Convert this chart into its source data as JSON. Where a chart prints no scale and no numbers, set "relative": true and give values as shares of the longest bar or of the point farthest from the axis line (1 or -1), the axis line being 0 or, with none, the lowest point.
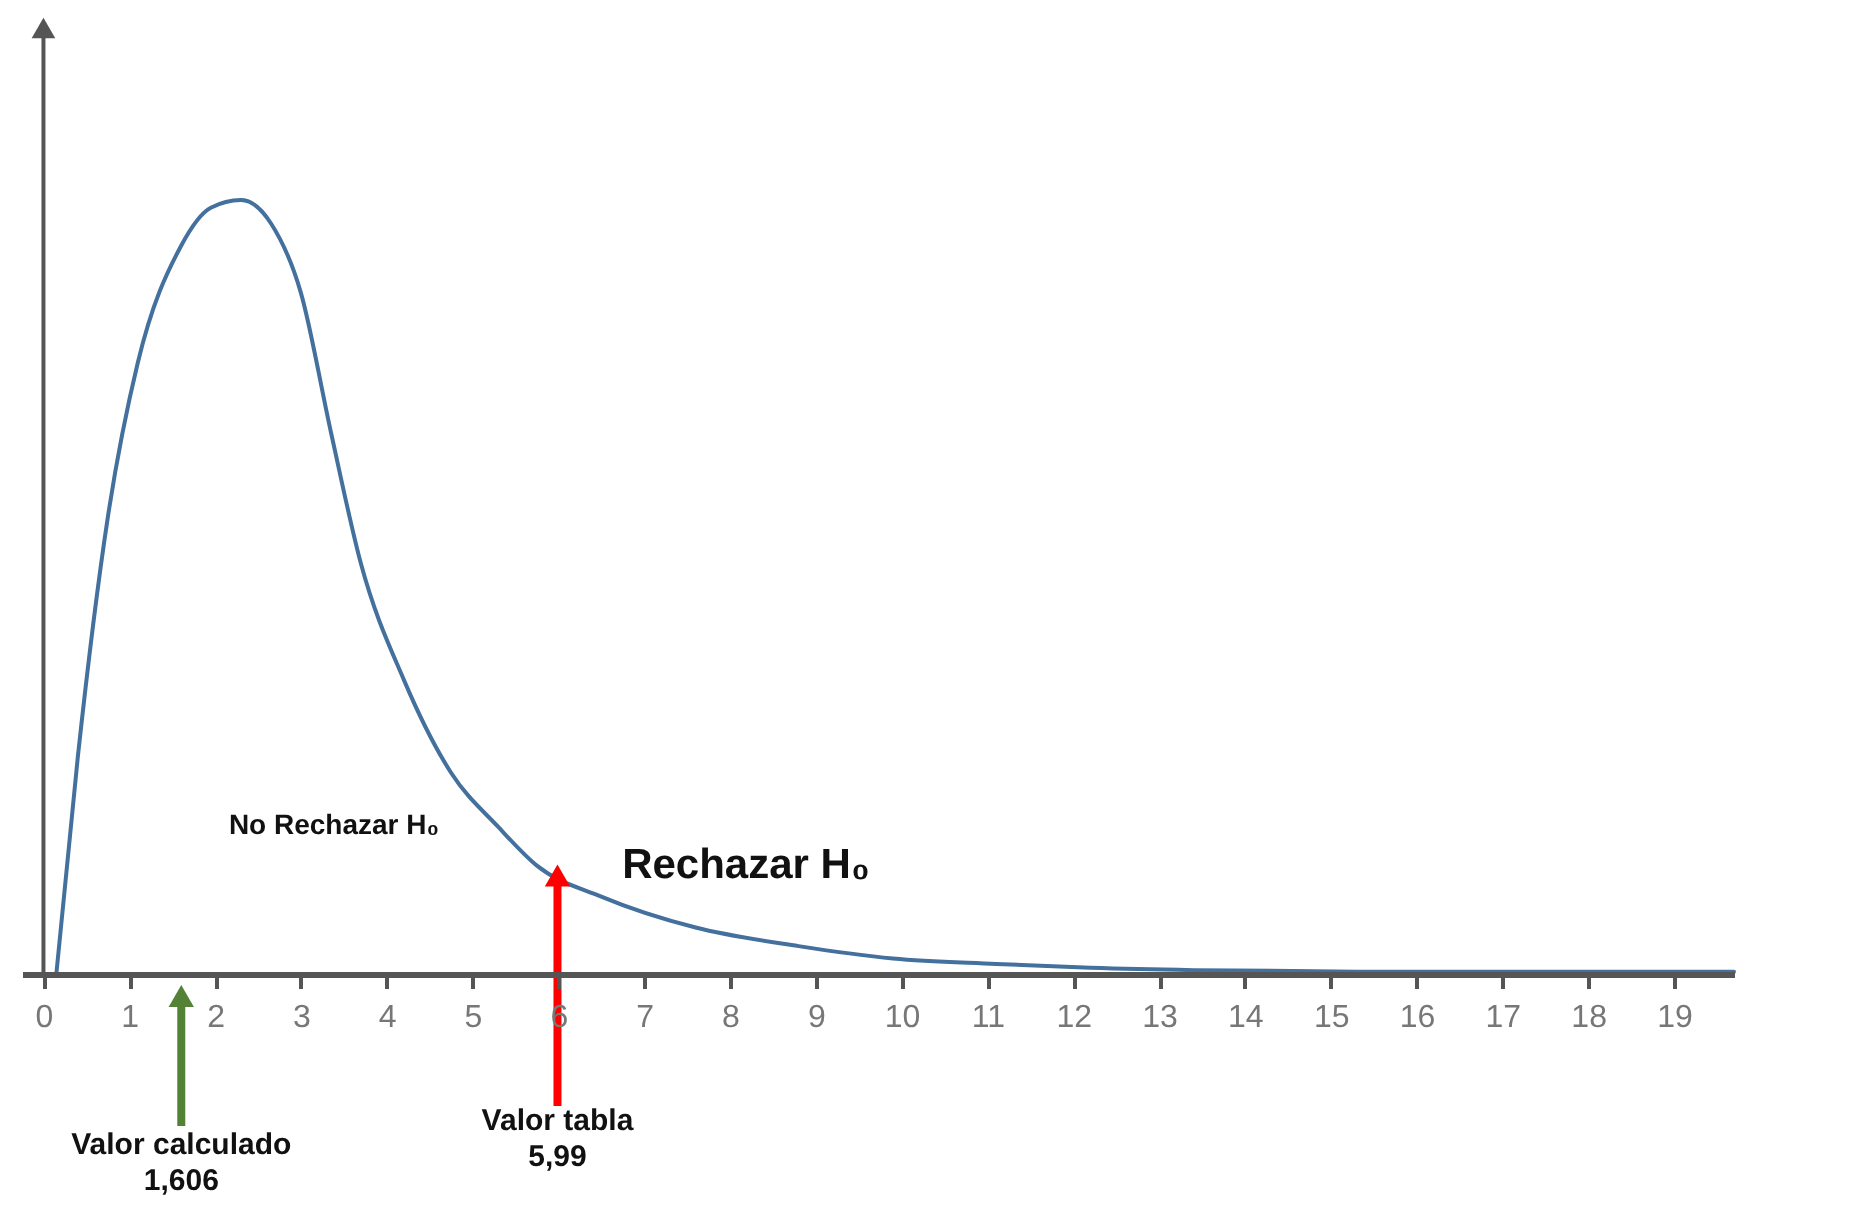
{
  "chart_data": {
    "type": "line",
    "relative": true,
    "tick_labels": "x",
    "xlim": [
      -0.25,
      19.7
    ],
    "xticks": [
      0,
      1,
      2,
      3,
      4,
      5,
      6,
      7,
      8,
      9,
      10,
      11,
      12,
      13,
      14,
      15,
      16,
      17,
      18,
      19
    ],
    "marker": "none",
    "series": [
      {
        "color": "#44709d",
        "x": [
          0.15,
          0.4,
          0.75,
          1.1,
          1.6,
          1.95,
          2.3,
          2.65,
          3.0,
          3.35,
          3.7,
          4.2,
          4.75,
          5.3,
          5.75,
          6.5,
          7.6,
          8.8,
          9.9,
          11.1,
          12.2,
          13.4,
          15.7,
          19.7
        ],
        "values": [
          0,
          0.28,
          0.59,
          0.79,
          0.94,
          0.99,
          1,
          0.97,
          0.88,
          0.7,
          0.53,
          0.38,
          0.26,
          0.19,
          0.14,
          0.1,
          0.06,
          0.036,
          0.02,
          0.013,
          0.008,
          0.005,
          0.003,
          0.003
        ]
      }
    ],
    "ref_lines": [
      {
        "axis": "x",
        "value": 1.606,
        "label": "Valor calculado\n1,606",
        "color": "#538135"
      },
      {
        "axis": "x",
        "value": 5.99,
        "label": "Valor tabla\n5,99",
        "color": "#ff0000"
      }
    ],
    "annotations": [
      "No Rechazar H₀",
      "Rechazar H₀"
    ]
  }
}
